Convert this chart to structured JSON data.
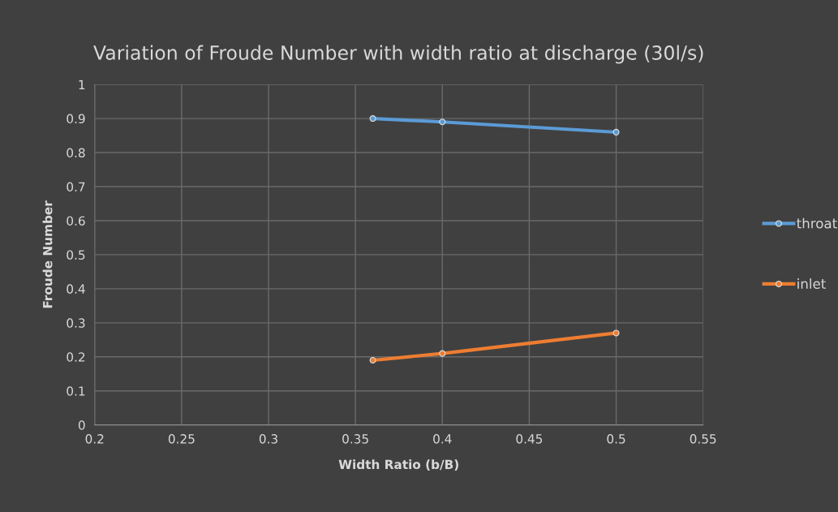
{
  "chart_data": {
    "type": "line",
    "title": "Variation of Froude Number with width ratio at discharge (30l/s)",
    "xlabel": "Width Ratio (b/B)",
    "ylabel": "Froude Number",
    "x": [
      0.36,
      0.4,
      0.5
    ],
    "series": [
      {
        "name": "throat",
        "color": "#5b9bd5",
        "values": [
          0.9,
          0.89,
          0.86
        ]
      },
      {
        "name": "inlet",
        "color": "#ed7d31",
        "values": [
          0.19,
          0.21,
          0.27
        ]
      }
    ],
    "xlim": [
      0.2,
      0.55
    ],
    "xticks": [
      0.2,
      0.25,
      0.3,
      0.35,
      0.4,
      0.45,
      0.5,
      0.55
    ],
    "ylim": [
      0,
      1
    ],
    "yticks": [
      0,
      0.1,
      0.2,
      0.3,
      0.4,
      0.5,
      0.6,
      0.7,
      0.8,
      0.9,
      1
    ],
    "grid": true,
    "legend": "right",
    "marker": "circle",
    "line_style": "solid"
  }
}
